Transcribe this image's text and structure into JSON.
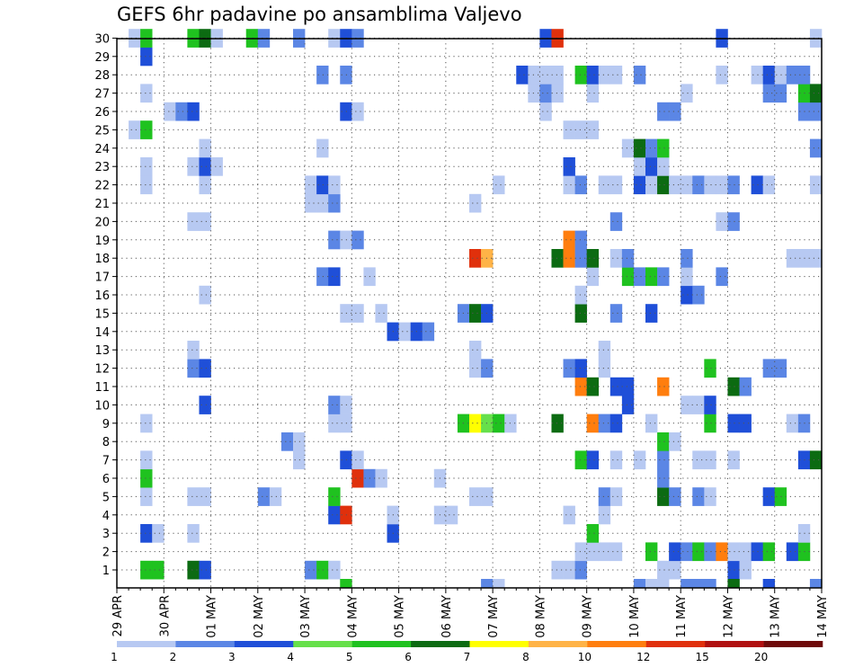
{
  "chart_data": {
    "type": "heatmap",
    "title": "GEFS 6hr padavine po ansamblima Valjevo",
    "xlabel": "",
    "ylabel": "",
    "x_tick_labels": [
      "29 APR",
      "30 APR",
      "01 MAY",
      "02 MAY",
      "03 MAY",
      "04 MAY",
      "05 MAY",
      "06 MAY",
      "07 MAY",
      "08 MAY",
      "09 MAY",
      "10 MAY",
      "11 MAY",
      "12 MAY",
      "13 MAY",
      "14 MAY"
    ],
    "y_tick_labels": [
      "1",
      "2",
      "3",
      "4",
      "5",
      "6",
      "7",
      "8",
      "9",
      "10",
      "11",
      "12",
      "13",
      "14",
      "15",
      "16",
      "17",
      "18",
      "19",
      "20",
      "21",
      "22",
      "23",
      "24",
      "25",
      "26",
      "27",
      "28",
      "29",
      "30"
    ],
    "x_range_steps": [
      0,
      60
    ],
    "y_range_members": [
      0,
      30
    ],
    "grid": true,
    "legend_position": "bottom",
    "colorbar": {
      "labels": [
        "1",
        "2",
        "3",
        "4",
        "5",
        "6",
        "7",
        "8",
        "10",
        "12",
        "15",
        "20"
      ],
      "colors": [
        "#b7c9f2",
        "#5b86e5",
        "#1f4fd8",
        "#66e04a",
        "#1fc21f",
        "#0c6b12",
        "#ffff00",
        "#ffb347",
        "#ff7e0e",
        "#e0300c",
        "#b01010",
        "#6e0a0a"
      ]
    },
    "cells": [
      [
        2,
        1,
        5
      ],
      [
        3,
        1,
        5
      ],
      [
        6,
        1,
        6
      ],
      [
        7,
        1,
        3
      ],
      [
        16,
        1,
        2
      ],
      [
        17,
        1,
        5
      ],
      [
        18,
        1,
        1
      ],
      [
        37,
        1,
        1
      ],
      [
        38,
        1,
        1
      ],
      [
        39,
        1,
        2
      ],
      [
        46,
        1,
        1
      ],
      [
        47,
        1,
        1
      ],
      [
        52,
        1,
        3
      ],
      [
        53,
        1,
        1
      ],
      [
        39,
        2,
        1
      ],
      [
        40,
        2,
        1
      ],
      [
        41,
        2,
        1
      ],
      [
        42,
        2,
        1
      ],
      [
        45,
        2,
        5
      ],
      [
        47,
        2,
        3
      ],
      [
        48,
        2,
        2
      ],
      [
        49,
        2,
        5
      ],
      [
        50,
        2,
        2
      ],
      [
        51,
        2,
        9
      ],
      [
        52,
        2,
        1
      ],
      [
        53,
        2,
        1
      ],
      [
        54,
        2,
        3
      ],
      [
        55,
        2,
        5
      ],
      [
        57,
        2,
        3
      ],
      [
        58,
        2,
        5
      ],
      [
        2,
        3,
        3
      ],
      [
        3,
        3,
        1
      ],
      [
        6,
        3,
        1
      ],
      [
        23,
        3,
        3
      ],
      [
        40,
        3,
        5
      ],
      [
        58,
        3,
        1
      ],
      [
        18,
        4,
        3
      ],
      [
        19,
        4,
        10
      ],
      [
        23,
        4,
        1
      ],
      [
        27,
        4,
        1
      ],
      [
        28,
        4,
        1
      ],
      [
        38,
        4,
        1
      ],
      [
        41,
        4,
        1
      ],
      [
        2,
        5,
        1
      ],
      [
        6,
        5,
        1
      ],
      [
        7,
        5,
        1
      ],
      [
        12,
        5,
        2
      ],
      [
        13,
        5,
        1
      ],
      [
        18,
        5,
        5
      ],
      [
        30,
        5,
        1
      ],
      [
        31,
        5,
        1
      ],
      [
        41,
        5,
        2
      ],
      [
        42,
        5,
        1
      ],
      [
        46,
        5,
        6
      ],
      [
        47,
        5,
        2
      ],
      [
        49,
        5,
        2
      ],
      [
        50,
        5,
        1
      ],
      [
        55,
        5,
        3
      ],
      [
        56,
        5,
        5
      ],
      [
        2,
        6,
        5
      ],
      [
        20,
        6,
        10
      ],
      [
        21,
        6,
        2
      ],
      [
        22,
        6,
        1
      ],
      [
        27,
        6,
        1
      ],
      [
        46,
        6,
        2
      ],
      [
        2,
        7,
        1
      ],
      [
        15,
        7,
        1
      ],
      [
        19,
        7,
        3
      ],
      [
        20,
        7,
        1
      ],
      [
        39,
        7,
        5
      ],
      [
        40,
        7,
        3
      ],
      [
        42,
        7,
        1
      ],
      [
        44,
        7,
        1
      ],
      [
        46,
        7,
        2
      ],
      [
        49,
        7,
        1
      ],
      [
        50,
        7,
        1
      ],
      [
        52,
        7,
        1
      ],
      [
        58,
        7,
        3
      ],
      [
        59,
        7,
        6
      ],
      [
        14,
        8,
        2
      ],
      [
        15,
        8,
        1
      ],
      [
        46,
        8,
        5
      ],
      [
        47,
        8,
        1
      ],
      [
        2,
        9,
        1
      ],
      [
        18,
        9,
        1
      ],
      [
        19,
        9,
        1
      ],
      [
        29,
        9,
        5
      ],
      [
        30,
        9,
        7
      ],
      [
        31,
        9,
        4
      ],
      [
        32,
        9,
        5
      ],
      [
        33,
        9,
        1
      ],
      [
        37,
        9,
        6
      ],
      [
        40,
        9,
        9
      ],
      [
        41,
        9,
        2
      ],
      [
        42,
        9,
        3
      ],
      [
        45,
        9,
        1
      ],
      [
        50,
        9,
        5
      ],
      [
        52,
        9,
        3
      ],
      [
        53,
        9,
        3
      ],
      [
        57,
        9,
        1
      ],
      [
        58,
        9,
        2
      ],
      [
        7,
        10,
        3
      ],
      [
        18,
        10,
        2
      ],
      [
        19,
        10,
        1
      ],
      [
        43,
        10,
        3
      ],
      [
        48,
        10,
        1
      ],
      [
        49,
        10,
        1
      ],
      [
        50,
        10,
        3
      ],
      [
        39,
        11,
        9
      ],
      [
        40,
        11,
        6
      ],
      [
        42,
        11,
        3
      ],
      [
        43,
        11,
        3
      ],
      [
        46,
        11,
        9
      ],
      [
        52,
        11,
        6
      ],
      [
        53,
        11,
        2
      ],
      [
        6,
        12,
        2
      ],
      [
        7,
        12,
        3
      ],
      [
        30,
        12,
        1
      ],
      [
        31,
        12,
        2
      ],
      [
        38,
        12,
        2
      ],
      [
        39,
        12,
        3
      ],
      [
        41,
        12,
        1
      ],
      [
        50,
        12,
        5
      ],
      [
        55,
        12,
        2
      ],
      [
        56,
        12,
        2
      ],
      [
        6,
        13,
        1
      ],
      [
        30,
        13,
        1
      ],
      [
        41,
        13,
        1
      ],
      [
        23,
        14,
        3
      ],
      [
        24,
        14,
        1
      ],
      [
        25,
        14,
        3
      ],
      [
        26,
        14,
        2
      ],
      [
        19,
        15,
        1
      ],
      [
        20,
        15,
        1
      ],
      [
        22,
        15,
        1
      ],
      [
        29,
        15,
        2
      ],
      [
        30,
        15,
        6
      ],
      [
        31,
        15,
        3
      ],
      [
        39,
        15,
        6
      ],
      [
        42,
        15,
        2
      ],
      [
        45,
        15,
        3
      ],
      [
        7,
        16,
        1
      ],
      [
        39,
        16,
        1
      ],
      [
        48,
        16,
        3
      ],
      [
        49,
        16,
        2
      ],
      [
        17,
        17,
        2
      ],
      [
        18,
        17,
        3
      ],
      [
        21,
        17,
        1
      ],
      [
        40,
        17,
        1
      ],
      [
        43,
        17,
        5
      ],
      [
        44,
        17,
        2
      ],
      [
        45,
        17,
        5
      ],
      [
        46,
        17,
        2
      ],
      [
        48,
        17,
        1
      ],
      [
        51,
        17,
        2
      ],
      [
        30,
        18,
        10
      ],
      [
        31,
        18,
        8
      ],
      [
        37,
        18,
        6
      ],
      [
        38,
        18,
        9
      ],
      [
        39,
        18,
        2
      ],
      [
        40,
        18,
        6
      ],
      [
        42,
        18,
        1
      ],
      [
        43,
        18,
        2
      ],
      [
        48,
        18,
        2
      ],
      [
        57,
        18,
        1
      ],
      [
        58,
        18,
        1
      ],
      [
        59,
        18,
        1
      ],
      [
        18,
        19,
        2
      ],
      [
        19,
        19,
        1
      ],
      [
        20,
        19,
        2
      ],
      [
        38,
        19,
        9
      ],
      [
        39,
        19,
        2
      ],
      [
        6,
        20,
        1
      ],
      [
        7,
        20,
        1
      ],
      [
        42,
        20,
        2
      ],
      [
        51,
        20,
        1
      ],
      [
        52,
        20,
        2
      ],
      [
        16,
        21,
        1
      ],
      [
        17,
        21,
        1
      ],
      [
        18,
        21,
        2
      ],
      [
        30,
        21,
        1
      ],
      [
        2,
        22,
        1
      ],
      [
        7,
        22,
        1
      ],
      [
        16,
        22,
        1
      ],
      [
        17,
        22,
        3
      ],
      [
        18,
        22,
        1
      ],
      [
        32,
        22,
        1
      ],
      [
        38,
        22,
        1
      ],
      [
        39,
        22,
        2
      ],
      [
        41,
        22,
        1
      ],
      [
        42,
        22,
        1
      ],
      [
        44,
        22,
        3
      ],
      [
        45,
        22,
        1
      ],
      [
        46,
        22,
        6
      ],
      [
        47,
        22,
        1
      ],
      [
        48,
        22,
        1
      ],
      [
        49,
        22,
        2
      ],
      [
        50,
        22,
        1
      ],
      [
        51,
        22,
        1
      ],
      [
        52,
        22,
        2
      ],
      [
        54,
        22,
        3
      ],
      [
        55,
        22,
        1
      ],
      [
        59,
        22,
        1
      ],
      [
        2,
        23,
        1
      ],
      [
        6,
        23,
        1
      ],
      [
        7,
        23,
        3
      ],
      [
        8,
        23,
        1
      ],
      [
        38,
        23,
        3
      ],
      [
        44,
        23,
        1
      ],
      [
        45,
        23,
        3
      ],
      [
        46,
        23,
        1
      ],
      [
        7,
        24,
        1
      ],
      [
        17,
        24,
        1
      ],
      [
        43,
        24,
        1
      ],
      [
        44,
        24,
        6
      ],
      [
        45,
        24,
        2
      ],
      [
        46,
        24,
        5
      ],
      [
        59,
        24,
        2
      ],
      [
        1,
        25,
        1
      ],
      [
        2,
        25,
        5
      ],
      [
        38,
        25,
        1
      ],
      [
        39,
        25,
        1
      ],
      [
        40,
        25,
        1
      ],
      [
        4,
        26,
        1
      ],
      [
        5,
        26,
        2
      ],
      [
        6,
        26,
        3
      ],
      [
        19,
        26,
        3
      ],
      [
        20,
        26,
        1
      ],
      [
        36,
        26,
        1
      ],
      [
        46,
        26,
        2
      ],
      [
        47,
        26,
        2
      ],
      [
        58,
        26,
        2
      ],
      [
        59,
        26,
        2
      ],
      [
        2,
        27,
        1
      ],
      [
        35,
        27,
        1
      ],
      [
        36,
        27,
        2
      ],
      [
        37,
        27,
        1
      ],
      [
        40,
        27,
        1
      ],
      [
        48,
        27,
        1
      ],
      [
        55,
        27,
        2
      ],
      [
        56,
        27,
        2
      ],
      [
        58,
        27,
        5
      ],
      [
        59,
        27,
        6
      ],
      [
        17,
        28,
        2
      ],
      [
        19,
        28,
        2
      ],
      [
        34,
        28,
        3
      ],
      [
        35,
        28,
        1
      ],
      [
        36,
        28,
        1
      ],
      [
        37,
        28,
        1
      ],
      [
        39,
        28,
        5
      ],
      [
        40,
        28,
        3
      ],
      [
        41,
        28,
        1
      ],
      [
        42,
        28,
        1
      ],
      [
        44,
        28,
        2
      ],
      [
        51,
        28,
        1
      ],
      [
        54,
        28,
        1
      ],
      [
        55,
        28,
        3
      ],
      [
        56,
        28,
        1
      ],
      [
        57,
        28,
        2
      ],
      [
        58,
        28,
        2
      ],
      [
        2,
        29,
        3
      ],
      [
        1,
        30,
        1
      ],
      [
        2,
        30,
        5
      ],
      [
        6,
        30,
        5
      ],
      [
        7,
        30,
        6
      ],
      [
        8,
        30,
        1
      ],
      [
        11,
        30,
        5
      ],
      [
        12,
        30,
        2
      ],
      [
        15,
        30,
        2
      ],
      [
        18,
        30,
        1
      ],
      [
        19,
        30,
        3
      ],
      [
        20,
        30,
        2
      ],
      [
        36,
        30,
        3
      ],
      [
        37,
        30,
        10
      ],
      [
        51,
        30,
        3
      ],
      [
        59,
        30,
        1
      ],
      [
        19,
        0,
        5
      ],
      [
        31,
        0,
        2
      ],
      [
        32,
        0,
        1
      ],
      [
        44,
        0,
        2
      ],
      [
        45,
        0,
        1
      ],
      [
        46,
        0,
        1
      ],
      [
        48,
        0,
        2
      ],
      [
        49,
        0,
        2
      ],
      [
        50,
        0,
        2
      ],
      [
        52,
        0,
        6
      ],
      [
        55,
        0,
        3
      ],
      [
        59,
        0,
        2
      ]
    ]
  }
}
